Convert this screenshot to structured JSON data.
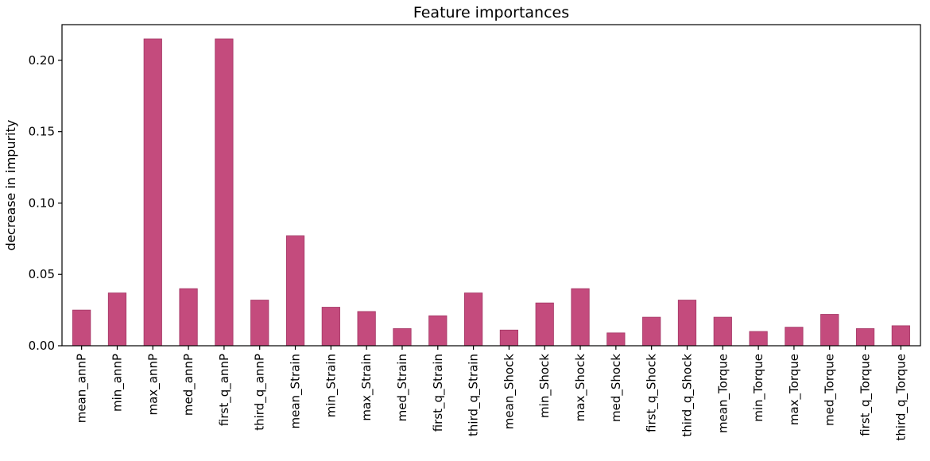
{
  "chart_data": {
    "type": "bar",
    "title": "Feature importances",
    "xlabel": "",
    "ylabel": "decrease in impurity",
    "ylim": [
      0,
      0.225
    ],
    "yticks": [
      0.0,
      0.05,
      0.1,
      0.15,
      0.2
    ],
    "ytick_labels": [
      "0.00",
      "0.05",
      "0.10",
      "0.15",
      "0.20"
    ],
    "grid": false,
    "legend": "none",
    "bar_color": "#c44b7d",
    "bar_edge_color": "#a33664",
    "categories": [
      "mean_annP",
      "min_annP",
      "max_annP",
      "med_annP",
      "first_q_annP",
      "third_q_annP",
      "mean_Strain",
      "min_Strain",
      "max_Strain",
      "med_Strain",
      "first_q_Strain",
      "third_q_Strain",
      "mean_Shock",
      "min_Shock",
      "max_Shock",
      "med_Shock",
      "first_q_Shock",
      "third_q_Shock",
      "mean_Torque",
      "min_Torque",
      "max_Torque",
      "med_Torque",
      "first_q_Torque",
      "third_q_Torque"
    ],
    "values": [
      0.025,
      0.037,
      0.215,
      0.04,
      0.215,
      0.032,
      0.077,
      0.027,
      0.024,
      0.012,
      0.021,
      0.037,
      0.011,
      0.03,
      0.04,
      0.009,
      0.02,
      0.032,
      0.02,
      0.01,
      0.013,
      0.022,
      0.012,
      0.014
    ]
  }
}
